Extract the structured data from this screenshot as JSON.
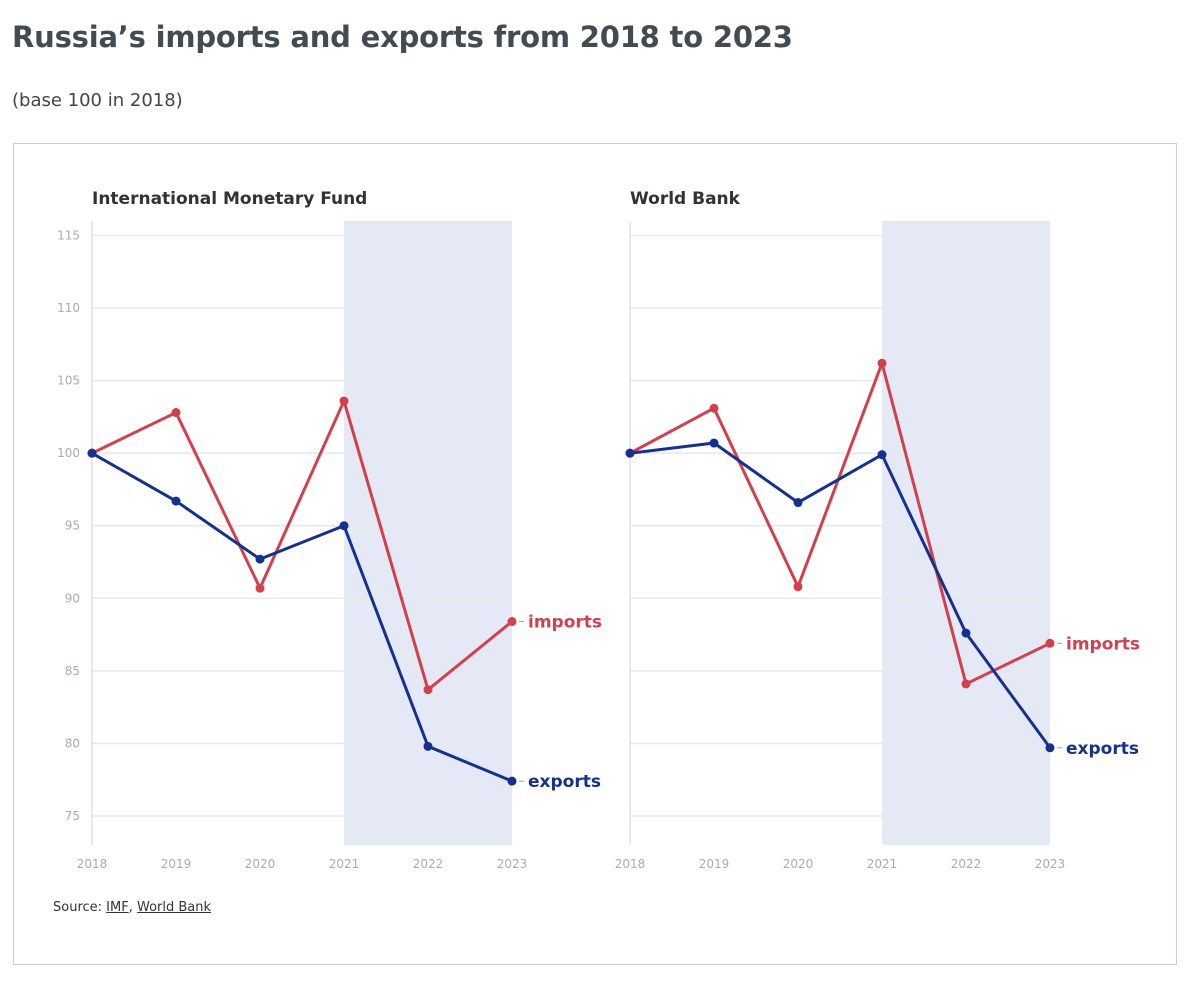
{
  "page": {
    "title": "Russia’s imports and exports from 2018 to 2023",
    "subtitle": "(base 100 in 2018)",
    "source_prefix": "Source:",
    "source_links": [
      "IMF",
      "World Bank"
    ],
    "source_separator": ","
  },
  "colors": {
    "imports": "#d2404e",
    "exports": "#15318f",
    "shade": "#e5e9f5",
    "grid": "#e6e8ec",
    "axis": "#cfd3d8"
  },
  "chart_data": [
    {
      "type": "line",
      "title": "International Monetary Fund",
      "x": [
        2018,
        2019,
        2020,
        2021,
        2022,
        2023
      ],
      "ylim": [
        73,
        117
      ],
      "yticks": [
        75,
        80,
        85,
        90,
        95,
        100,
        105,
        110,
        115
      ],
      "grid": true,
      "shaded_range": [
        2021,
        2023
      ],
      "series": [
        {
          "name": "imports",
          "values": [
            100,
            102.8,
            90.7,
            103.6,
            83.7,
            88.4
          ]
        },
        {
          "name": "exports",
          "values": [
            100,
            96.7,
            92.7,
            95.0,
            79.8,
            77.4
          ]
        }
      ]
    },
    {
      "type": "line",
      "title": "World Bank",
      "x": [
        2018,
        2019,
        2020,
        2021,
        2022,
        2023
      ],
      "ylim": [
        73,
        117
      ],
      "yticks": [
        75,
        80,
        85,
        90,
        95,
        100,
        105,
        110,
        115
      ],
      "grid": true,
      "shaded_range": [
        2021,
        2023
      ],
      "series": [
        {
          "name": "imports",
          "values": [
            100,
            103.1,
            90.8,
            106.2,
            84.1,
            86.9
          ]
        },
        {
          "name": "exports",
          "values": [
            100,
            100.7,
            96.6,
            99.9,
            87.6,
            79.7
          ]
        }
      ]
    }
  ]
}
